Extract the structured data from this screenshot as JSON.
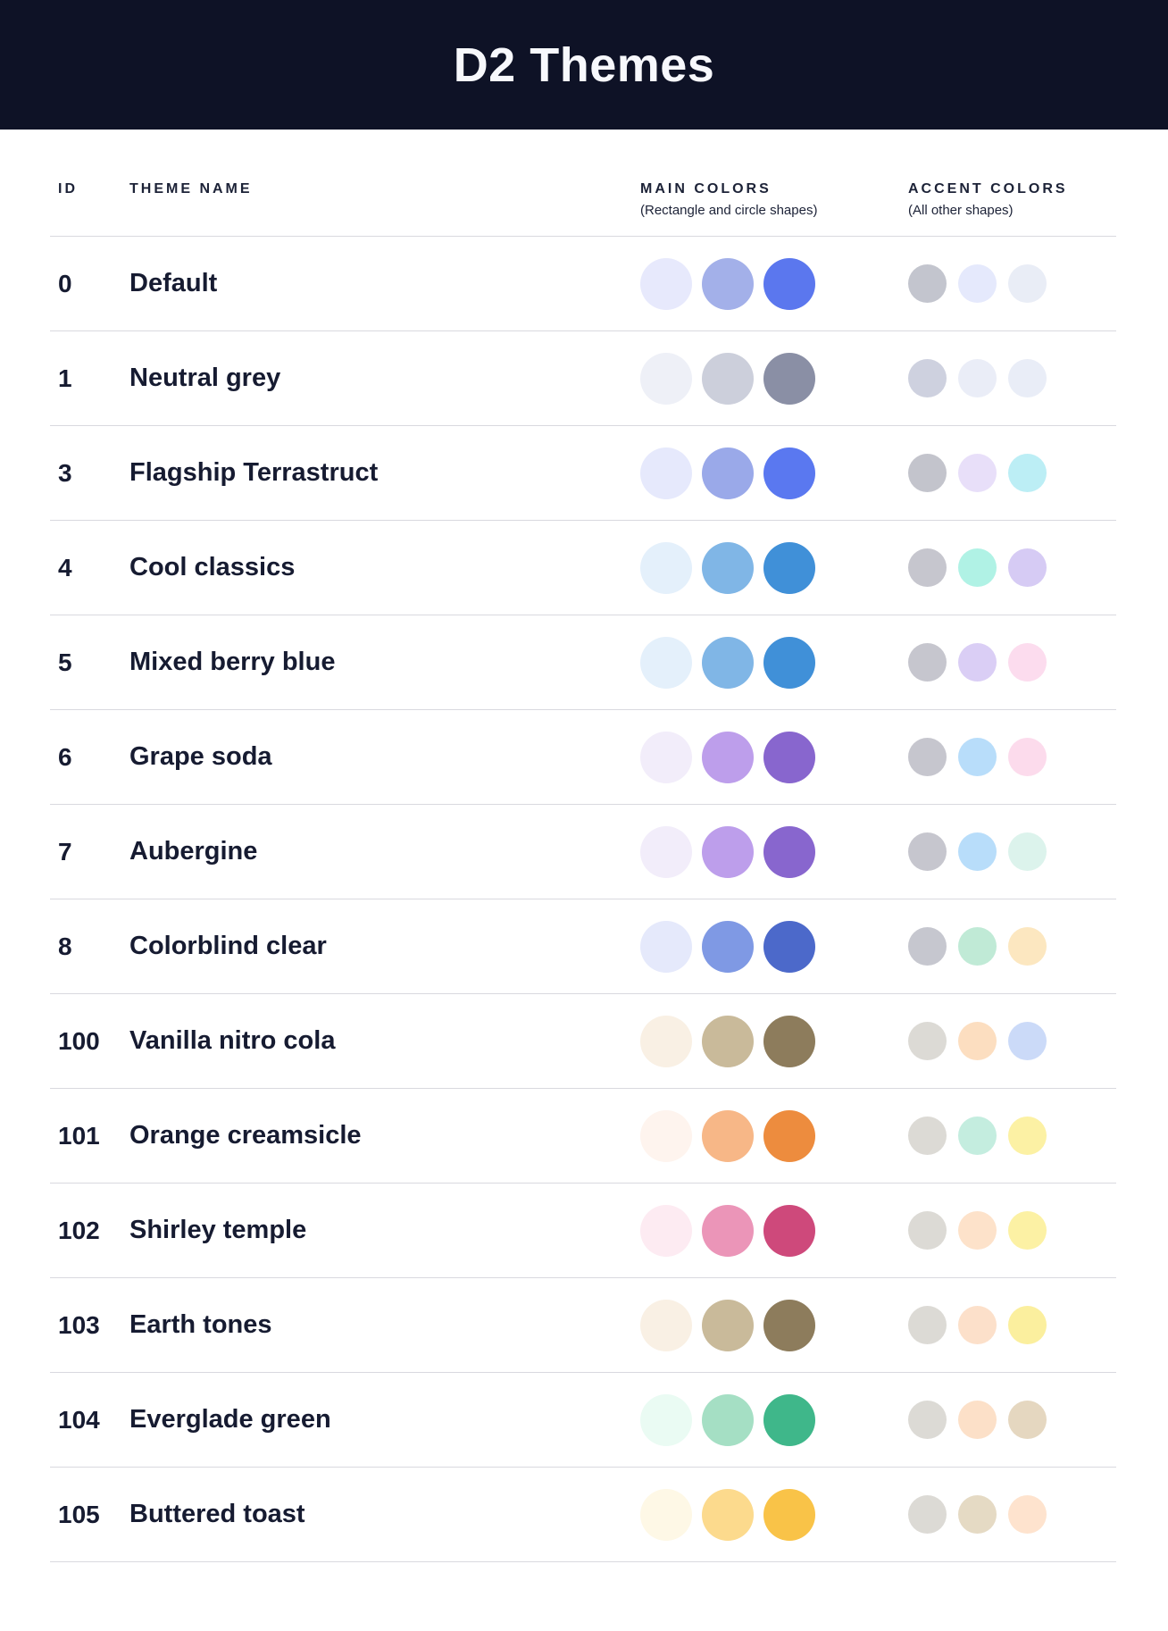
{
  "header": {
    "title": "D2 Themes"
  },
  "columns": {
    "id": "ID",
    "theme_name": "THEME NAME",
    "main_colors": "MAIN COLORS",
    "main_colors_sub": "(Rectangle and circle shapes)",
    "accent_colors": "ACCENT COLORS",
    "accent_colors_sub": "(All other shapes)"
  },
  "style_colors": {
    "header_bg": "#0E1226",
    "title_text": "#F7F8FC",
    "body_text": "#161B31",
    "divider": "#D9D9DF"
  },
  "themes": [
    {
      "id": "0",
      "name": "Default",
      "main": [
        "#E7E9FC",
        "#A3B0E9",
        "#5B77EE"
      ],
      "accent": [
        "#C3C5CE",
        "#E5E9FC",
        "#E9EDF6"
      ]
    },
    {
      "id": "1",
      "name": "Neutral grey",
      "main": [
        "#EEF0F7",
        "#CCCFDB",
        "#8A8FA5"
      ],
      "accent": [
        "#CED1DF",
        "#EAEDF7",
        "#E9EDF7"
      ]
    },
    {
      "id": "3",
      "name": "Flagship Terrastruct",
      "main": [
        "#E6E9FC",
        "#9AA9E9",
        "#5A78F0"
      ],
      "accent": [
        "#C3C4CC",
        "#E8DFF9",
        "#BCEEF5"
      ]
    },
    {
      "id": "4",
      "name": "Cool classics",
      "main": [
        "#E4F0FB",
        "#80B6E6",
        "#4090D8"
      ],
      "accent": [
        "#C6C6CE",
        "#B0F2E5",
        "#D6CBF4"
      ]
    },
    {
      "id": "5",
      "name": "Mixed berry blue",
      "main": [
        "#E4F0FB",
        "#80B6E6",
        "#4090D8"
      ],
      "accent": [
        "#C6C6CE",
        "#DACEF5",
        "#FCDCEE"
      ]
    },
    {
      "id": "6",
      "name": "Grape soda",
      "main": [
        "#F2EDFA",
        "#BD9EEB",
        "#8866CE"
      ],
      "accent": [
        "#C6C6CE",
        "#B8DDFA",
        "#FCDBEC"
      ]
    },
    {
      "id": "7",
      "name": "Aubergine",
      "main": [
        "#F2EDFA",
        "#BD9EEB",
        "#8866CE"
      ],
      "accent": [
        "#C6C6CE",
        "#B8DDFA",
        "#DCF3EC"
      ]
    },
    {
      "id": "8",
      "name": "Colorblind clear",
      "main": [
        "#E5E9FB",
        "#7F99E4",
        "#4C69CA"
      ],
      "accent": [
        "#C6C7CF",
        "#C0EAD6",
        "#FCE7C0"
      ]
    },
    {
      "id": "100",
      "name": "Vanilla nitro cola",
      "main": [
        "#F9F0E4",
        "#C9BA9A",
        "#8D7C5C"
      ],
      "accent": [
        "#DCDAD5",
        "#FCDEC0",
        "#CBDAF8"
      ]
    },
    {
      "id": "101",
      "name": "Orange creamsicle",
      "main": [
        "#FEF4EE",
        "#F7B787",
        "#ED8C3E"
      ],
      "accent": [
        "#DCDAD5",
        "#C4EDDF",
        "#FCF1A4"
      ]
    },
    {
      "id": "102",
      "name": "Shirley temple",
      "main": [
        "#FDEBF2",
        "#EB95B8",
        "#CE497B"
      ],
      "accent": [
        "#DCDAD5",
        "#FDE2CA",
        "#FCF1A4"
      ]
    },
    {
      "id": "103",
      "name": "Earth tones",
      "main": [
        "#F9F0E4",
        "#C9BA9A",
        "#8D7C5C"
      ],
      "accent": [
        "#DCDAD5",
        "#FCE0CA",
        "#FBEF9E"
      ]
    },
    {
      "id": "104",
      "name": "Everglade green",
      "main": [
        "#EAFBF3",
        "#A5DFC4",
        "#3FB78A"
      ],
      "accent": [
        "#DCDAD5",
        "#FCE0C8",
        "#E5D7C0"
      ]
    },
    {
      "id": "105",
      "name": "Buttered toast",
      "main": [
        "#FEF8E6",
        "#FCDA8D",
        "#F9C348"
      ],
      "accent": [
        "#DCDAD5",
        "#E5DAC4",
        "#FEE3CE"
      ]
    }
  ]
}
